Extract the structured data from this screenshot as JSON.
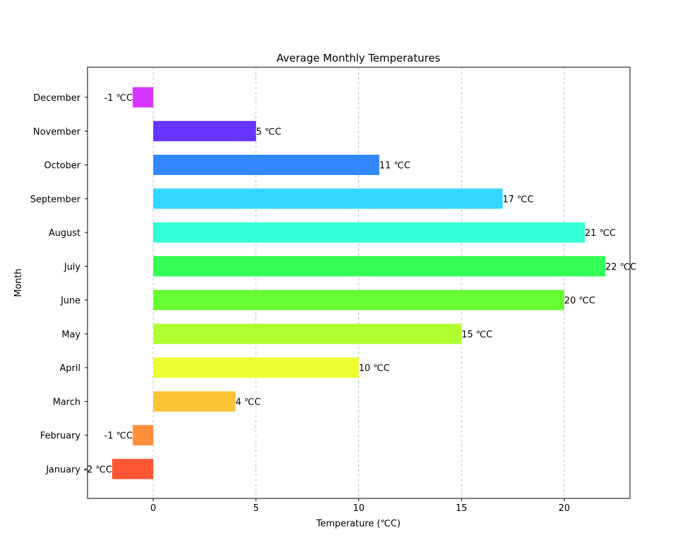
{
  "chart_data": {
    "type": "bar",
    "orientation": "horizontal",
    "title": "Average Monthly Temperatures",
    "xlabel": "Temperature (℃C)",
    "ylabel": "Month",
    "categories": [
      "January",
      "February",
      "March",
      "April",
      "May",
      "June",
      "July",
      "August",
      "September",
      "October",
      "November",
      "December"
    ],
    "values": [
      -2,
      -1,
      4,
      10,
      15,
      20,
      22,
      21,
      17,
      11,
      5,
      -1
    ],
    "data_labels": [
      "-2 ℃C",
      "-1 ℃C",
      "4 ℃C",
      "10 ℃C",
      "15 ℃C",
      "20 ℃C",
      "22 ℃C",
      "21 ℃C",
      "17 ℃C",
      "11 ℃C",
      "5 ℃C",
      "-1 ℃C"
    ],
    "colors": [
      "#ff5733",
      "#ff8f3a",
      "#ffc336",
      "#eeff2f",
      "#b0ff2f",
      "#66ff33",
      "#33ff55",
      "#33ffd6",
      "#33d6ff",
      "#3388ff",
      "#6633ff",
      "#d633ff"
    ],
    "xlim": [
      -3.2,
      23.2
    ],
    "xticks": [
      0,
      5,
      10,
      15,
      20
    ],
    "grid": "x-dashed"
  }
}
